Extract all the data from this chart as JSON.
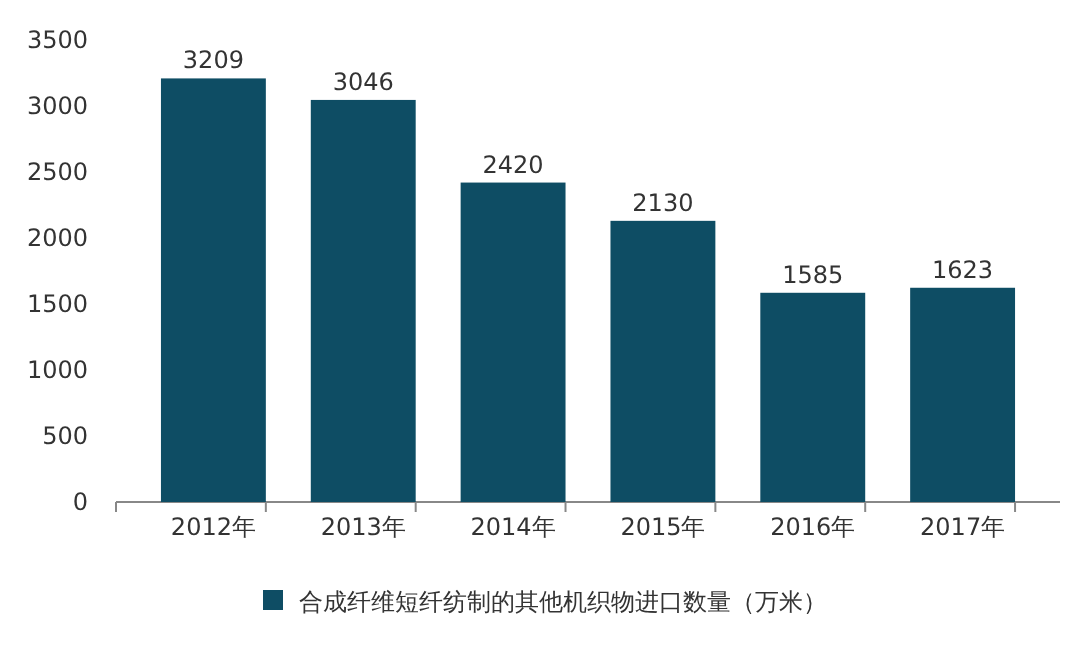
{
  "chart_data": {
    "type": "bar",
    "categories": [
      "2012年",
      "2013年",
      "2014年",
      "2015年",
      "2016年",
      "2017年"
    ],
    "series": [
      {
        "name": "合成纤维短纤纺制的其他机织物进口数量（万米）",
        "color": "#0e4d64",
        "values": [
          3209,
          3046,
          2420,
          2130,
          1585,
          1623
        ]
      }
    ],
    "ylim": [
      0,
      3500
    ],
    "yticks": [
      0,
      500,
      1000,
      1500,
      2000,
      2500,
      3000,
      3500
    ],
    "data_labels": true,
    "grid": false,
    "legend": "bottom"
  }
}
